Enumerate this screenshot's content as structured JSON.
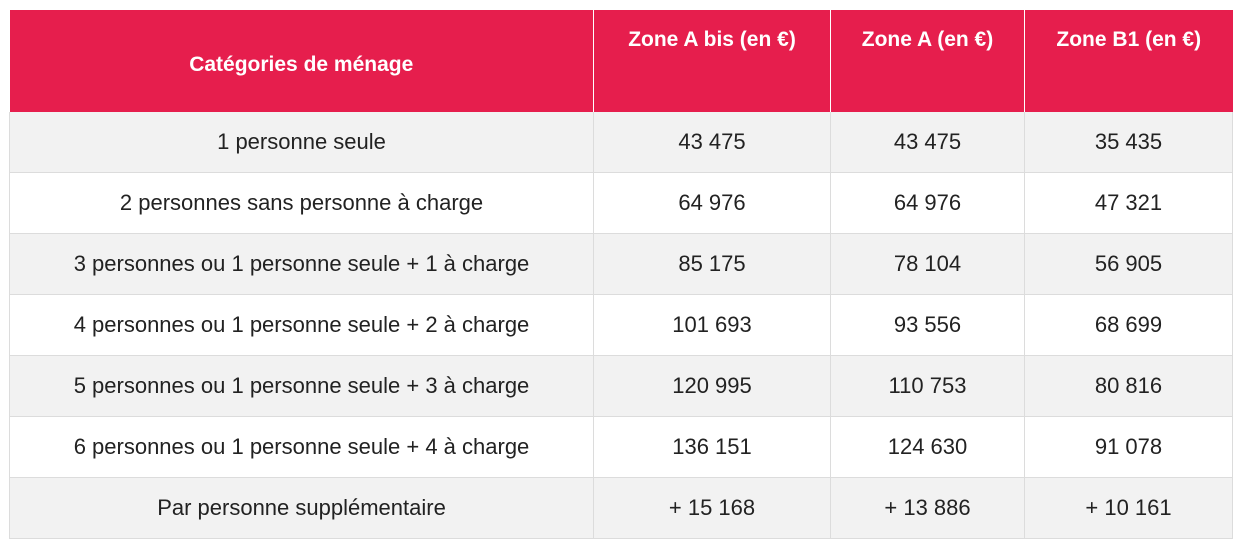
{
  "table": {
    "headers": [
      "Catégories de ménage",
      "Zone A bis (en €)",
      "Zone A (en €)",
      "Zone B1 (en €)"
    ],
    "rows": [
      [
        "1 personne seule",
        "43 475",
        "43 475",
        "35 435"
      ],
      [
        "2 personnes sans personne à charge",
        "64 976",
        "64 976",
        "47 321"
      ],
      [
        "3 personnes ou 1 personne seule + 1 à charge",
        "85 175",
        "78 104",
        "56 905"
      ],
      [
        "4 personnes ou 1 personne seule + 2 à charge",
        "101 693",
        "93 556",
        "68 699"
      ],
      [
        "5 personnes ou 1 personne seule + 3 à charge",
        "120 995",
        "110 753",
        "80 816"
      ],
      [
        "6 personnes ou 1 personne seule + 4 à charge",
        "136 151",
        "124 630",
        "91 078"
      ],
      [
        "Par personne supplémentaire",
        "+ 15 168",
        "+ 13 886",
        "+ 10 161"
      ]
    ]
  },
  "colors": {
    "header_bg": "#e61e4d",
    "header_text": "#ffffff",
    "row_alt_bg": "#f2f2f2",
    "row_bg": "#ffffff",
    "border": "#dcdcdc"
  }
}
